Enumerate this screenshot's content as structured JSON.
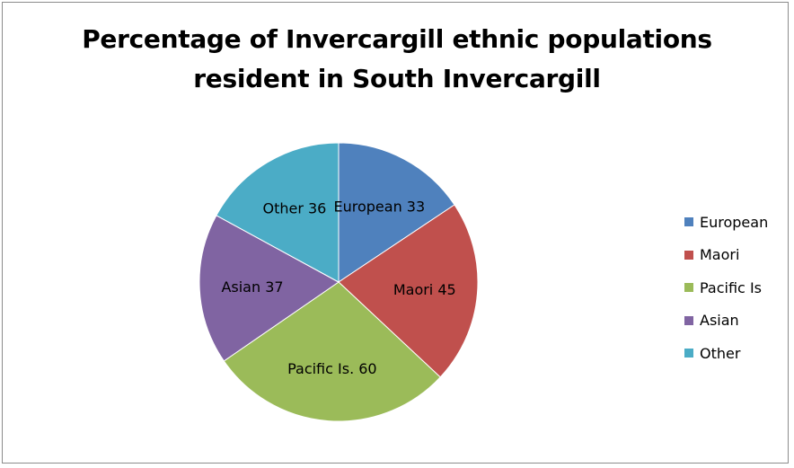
{
  "chart_data": {
    "type": "pie",
    "title": "Percentage of Invercargill ethnic populations resident in South Invercargill",
    "title_lines": [
      "Percentage of Invercargill ethnic populations",
      "resident in South Invercargill"
    ],
    "categories": [
      "European",
      "Maori",
      "Pacific Is",
      "Asian",
      "Other"
    ],
    "values": [
      33,
      45,
      60,
      37,
      36
    ],
    "slice_labels": [
      "European 33",
      "Maori 45",
      "Pacific Is. 60",
      "Asian 37",
      "Other 36"
    ],
    "colors": [
      "#4f81bd",
      "#c0504d",
      "#9bbb59",
      "#8064a2",
      "#4bacc6"
    ],
    "legend_position": "right",
    "start_angle": "top, clockwise"
  }
}
